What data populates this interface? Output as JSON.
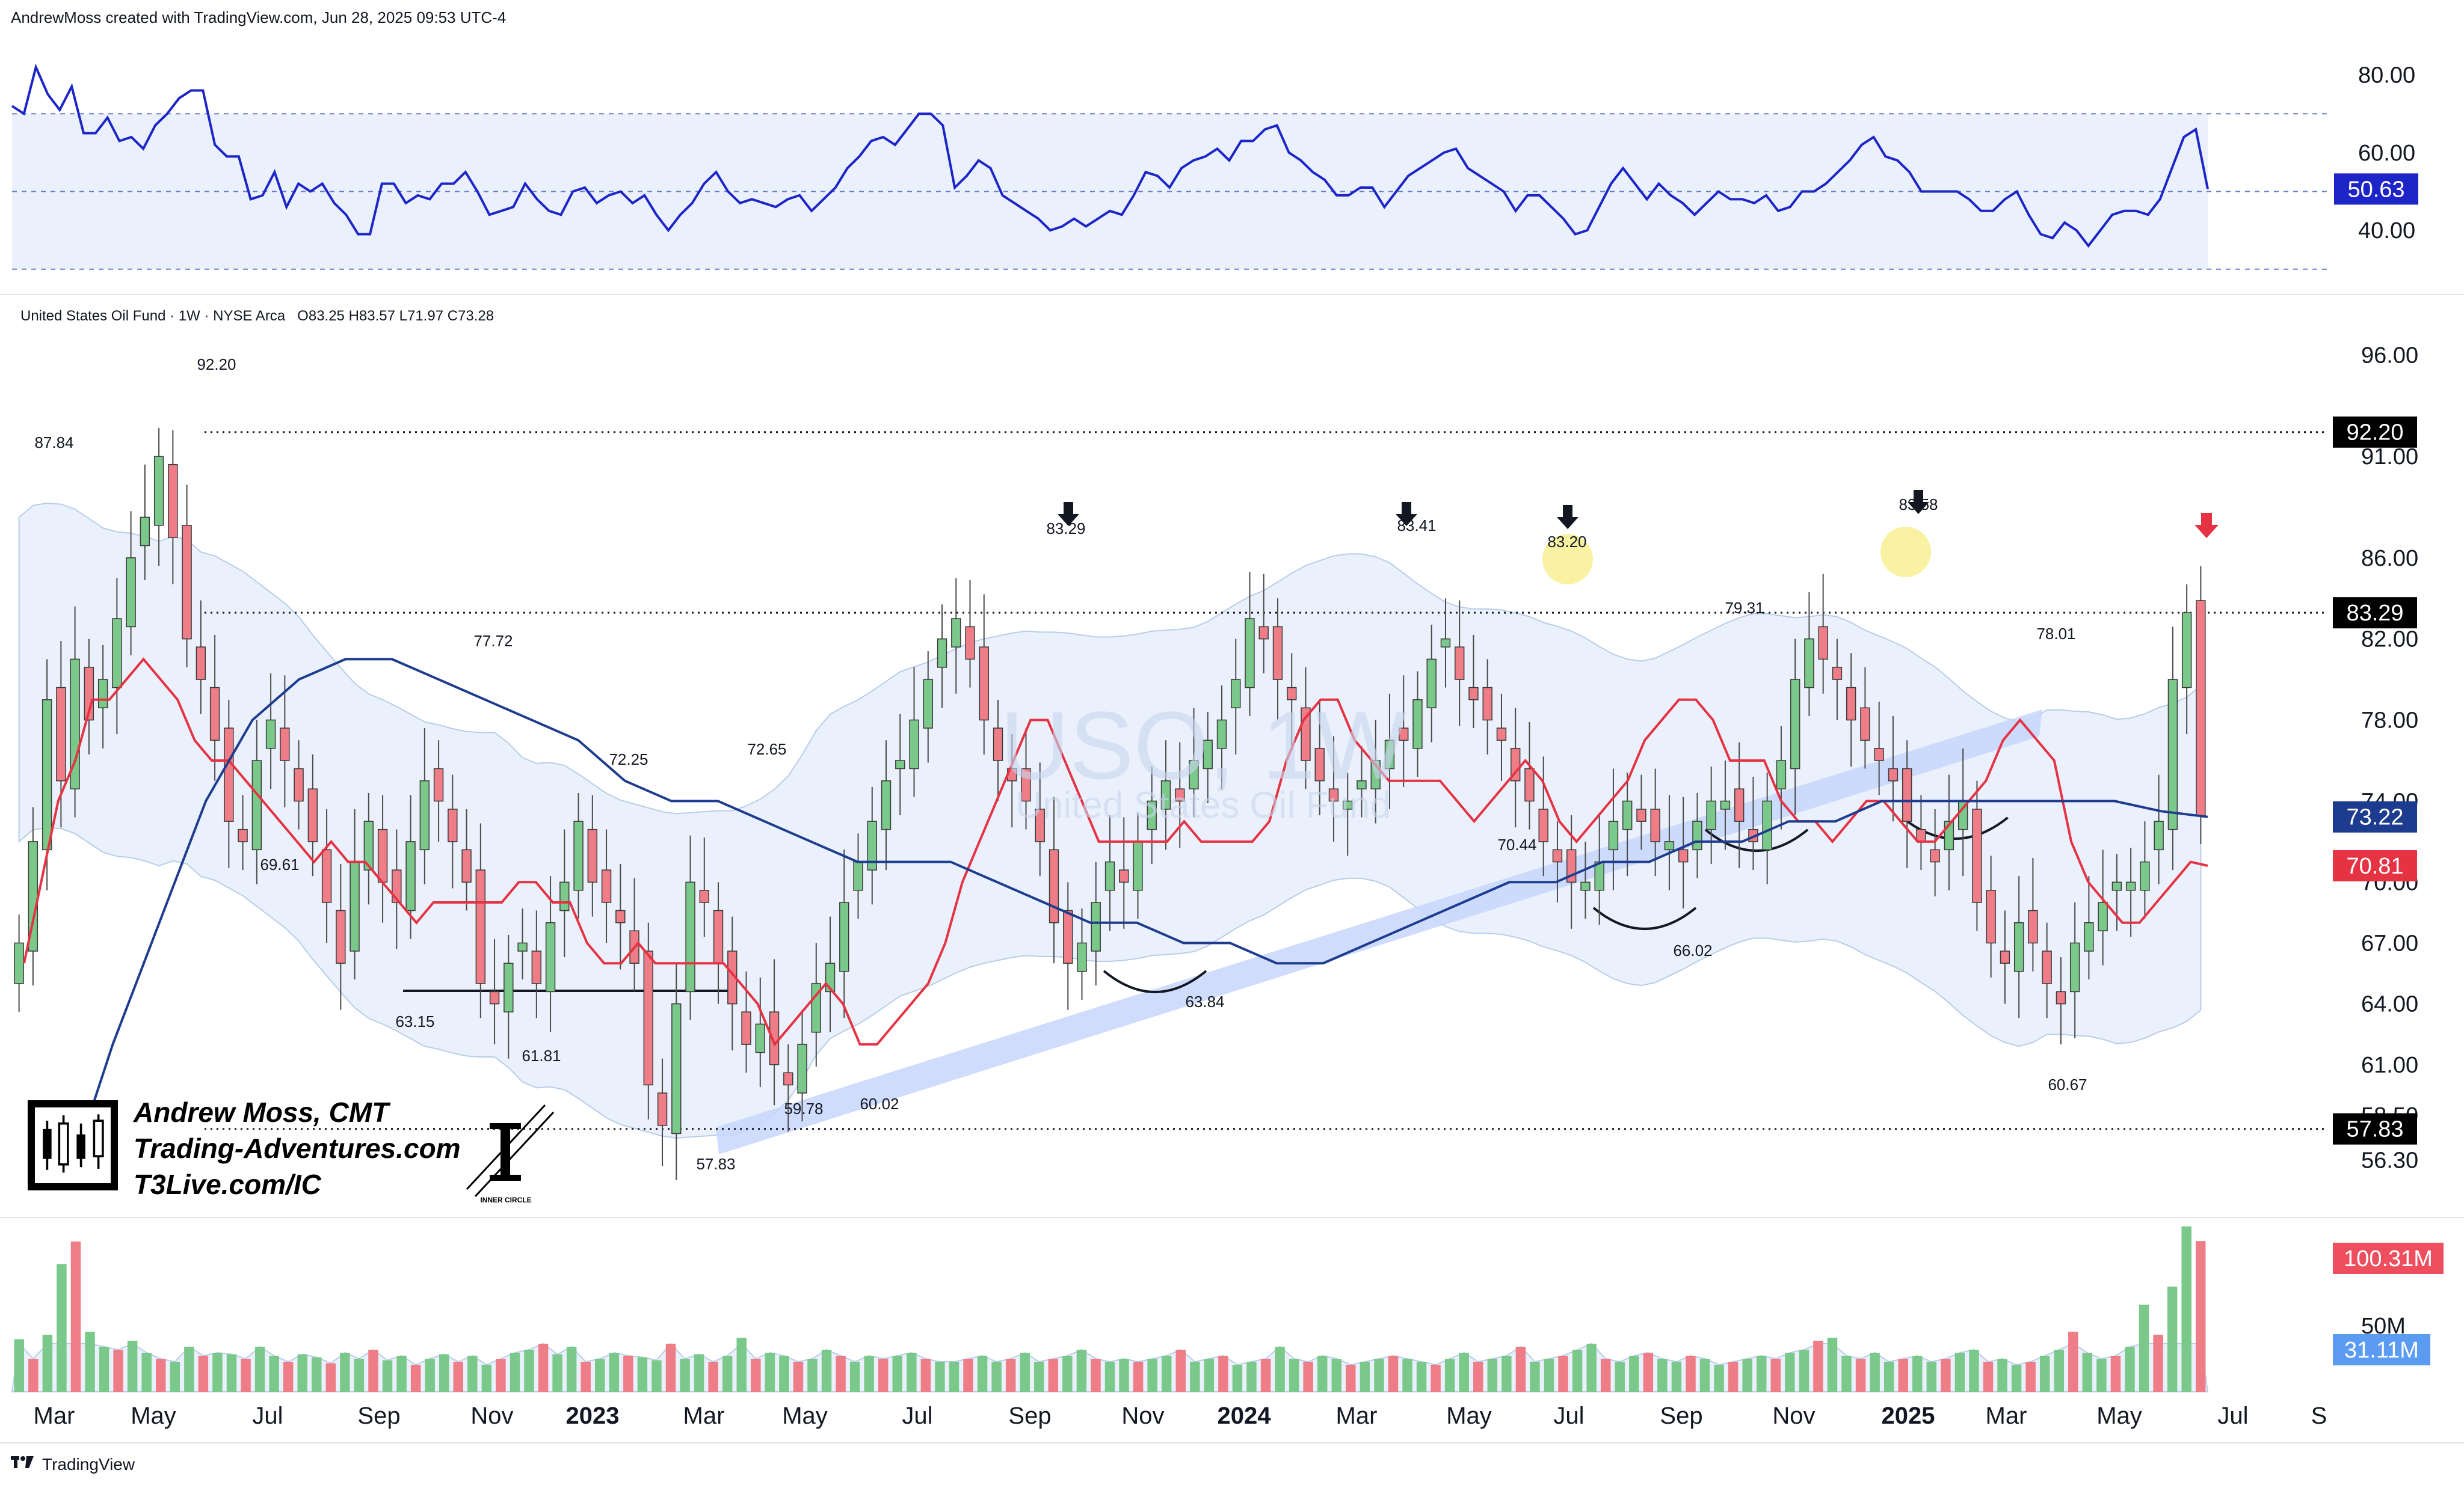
{
  "header": {
    "text": "AndrewMoss created with TradingView.com, Jun 28, 2025 09:53 UTC-4"
  },
  "footer": {
    "text": "TradingView"
  },
  "colors": {
    "up": "#7bc98a",
    "down": "#ef7d87",
    "ema_red": "#e53344",
    "ma_blue": "#1e3c8f",
    "rsi": "#1d24c8",
    "band_fill": "#eaf1fc",
    "channel": "#c7d6fb",
    "highlight": "#f7ed83"
  },
  "chart_data": [
    {
      "type": "line",
      "name": "rsi-panel",
      "ylim": [
        25,
        90
      ],
      "yticks": [
        "80.00",
        "60.00",
        "40.00"
      ],
      "guides": [
        30,
        50,
        70
      ],
      "current_label": "50.63",
      "values": [
        72,
        70,
        82,
        75,
        71,
        77,
        65,
        65,
        69,
        63,
        64,
        61,
        67,
        70,
        74,
        76,
        76,
        62,
        59,
        59,
        48,
        49,
        55,
        46,
        52,
        50,
        52,
        47,
        44,
        39,
        39,
        52,
        52,
        47,
        49,
        48,
        52,
        52,
        55,
        50,
        44,
        45,
        46,
        52,
        48,
        45,
        44,
        50,
        51,
        47,
        49,
        50,
        47,
        49,
        44,
        40,
        44,
        47,
        52,
        55,
        50,
        47,
        48,
        47,
        46,
        48,
        49,
        45,
        48,
        51,
        56,
        59,
        63,
        64,
        62,
        66,
        70,
        70,
        67,
        51,
        54,
        58,
        56,
        49,
        47,
        45,
        43,
        40,
        41,
        43,
        41,
        43,
        45,
        44,
        49,
        55,
        54,
        51,
        56,
        58,
        59,
        61,
        58,
        63,
        63,
        66,
        67,
        60,
        58,
        55,
        53,
        49,
        49,
        51,
        51,
        46,
        50,
        54,
        56,
        58,
        60,
        61,
        56,
        54,
        52,
        50,
        45,
        49,
        49,
        46,
        43,
        39,
        40,
        46,
        52,
        56,
        52,
        48,
        52,
        49,
        47,
        44,
        47,
        50,
        48,
        48,
        47,
        49,
        45,
        46,
        50,
        50,
        52,
        55,
        58,
        62,
        64,
        59,
        58,
        55,
        50,
        50,
        50,
        50,
        48,
        45,
        45,
        48,
        50,
        44,
        39,
        38,
        42,
        40,
        36,
        40,
        44,
        45,
        45,
        44,
        48,
        56,
        64,
        66,
        50.63
      ]
    },
    {
      "type": "candlestick",
      "name": "price-panel",
      "title": "United States Oil Fund · 1W · NYSE Arca",
      "ohlc_label": {
        "o": "O83.25",
        "h": "H83.57",
        "l": "L71.97",
        "c": "C73.28"
      },
      "watermark": [
        "USO, 1W",
        "United States Oil Fund"
      ],
      "ylim": [
        54.5,
        97.5
      ],
      "yticks": [
        "96.00",
        "91.00",
        "86.00",
        "82.00",
        "78.00",
        "74.00",
        "70.00",
        "67.00",
        "64.00",
        "61.00",
        "58.50",
        "56.30"
      ],
      "x_labels": [
        "Mar",
        "May",
        "Jul",
        "Sep",
        "Nov",
        "2023",
        "Mar",
        "May",
        "Jul",
        "Sep",
        "Nov",
        "2024",
        "Mar",
        "May",
        "Jul",
        "Sep",
        "Nov",
        "2025",
        "Mar",
        "May",
        "Jul",
        "S"
      ],
      "levels": [
        {
          "value": 92.2,
          "label": "92.20"
        },
        {
          "value": 83.29,
          "label": "83.29"
        },
        {
          "value": 57.83,
          "label": "57.83"
        }
      ],
      "right_badges": [
        {
          "value": 73.22,
          "label": "73.22",
          "color": "#1e3c8f"
        },
        {
          "value": 70.81,
          "label": "70.81",
          "color": "#e53344"
        }
      ],
      "annotations": [
        "87.84",
        "92.20",
        "69.61",
        "77.72",
        "63.15",
        "61.81",
        "72.25",
        "72.65",
        "57.83",
        "59.78",
        "60.02",
        "83.29",
        "63.84",
        "83.41",
        "83.20",
        "70.44",
        "79.31",
        "66.02",
        "83.58",
        "78.01",
        "60.67"
      ],
      "close": [
        67,
        72,
        79,
        75,
        81,
        78,
        80,
        83,
        86,
        88,
        91,
        87,
        82,
        80,
        77,
        73,
        72,
        76,
        78,
        76,
        74,
        72,
        69,
        66,
        71,
        73,
        70,
        69,
        72,
        75,
        74,
        72,
        70,
        65,
        64,
        66,
        67,
        65,
        68,
        70,
        73,
        70,
        69,
        68,
        66,
        60,
        58,
        64,
        70,
        69,
        66,
        64,
        62,
        63,
        61,
        60,
        62,
        65,
        66,
        69,
        71,
        73,
        75,
        76,
        78,
        80,
        82,
        83,
        81,
        78,
        76,
        75,
        74,
        72,
        68,
        66,
        67,
        69,
        71,
        70,
        72,
        74,
        75,
        74,
        76,
        77,
        78,
        80,
        83,
        82,
        80,
        79,
        76,
        75,
        74,
        74,
        75,
        76,
        77,
        77,
        79,
        81,
        82,
        80,
        79,
        78,
        77,
        75,
        74,
        72,
        71,
        70,
        70,
        71,
        73,
        74,
        73,
        72,
        72,
        71,
        73,
        74,
        74,
        73,
        72,
        74,
        76,
        80,
        82,
        81,
        80,
        78,
        77,
        76,
        75,
        73,
        72,
        71,
        73,
        74,
        69,
        67,
        66,
        68,
        67,
        65,
        64,
        67,
        68,
        69,
        70,
        70,
        71,
        73,
        80,
        83.29,
        73.28
      ],
      "ema_red": [
        66,
        70,
        74,
        76,
        79,
        79,
        80,
        81,
        80,
        79,
        77,
        76,
        76,
        75,
        74,
        73,
        72,
        71,
        72,
        71,
        71,
        70,
        69,
        68,
        69,
        69,
        69,
        69,
        69,
        70,
        70,
        69,
        69,
        67,
        66,
        66,
        67,
        66,
        66,
        66,
        66,
        66,
        65,
        64,
        62,
        63,
        64,
        65,
        64,
        62,
        62,
        63,
        64,
        65,
        67,
        70,
        72,
        74,
        76,
        78,
        78,
        76,
        74,
        72,
        72,
        72,
        72,
        72,
        73,
        72,
        72,
        72,
        72,
        73,
        76,
        78,
        79,
        79,
        77,
        76,
        75,
        75,
        75,
        75,
        74,
        73,
        74,
        75,
        76,
        75,
        73,
        72,
        73,
        74,
        75,
        77,
        78,
        79,
        79,
        78,
        76,
        76,
        76,
        74,
        73,
        73,
        72,
        73,
        74,
        74,
        73,
        72,
        72,
        73,
        74,
        75,
        77,
        78,
        77,
        76,
        72,
        70,
        69,
        68,
        68,
        69,
        70,
        71,
        70.81
      ],
      "ma_blue": [
        55,
        62,
        68,
        74,
        78,
        80,
        81,
        81,
        80,
        79,
        78,
        77,
        75,
        74,
        74,
        73,
        72,
        71,
        71,
        71,
        70,
        69,
        68,
        68,
        67,
        67,
        66,
        66,
        67,
        68,
        69,
        70,
        70,
        71,
        71,
        72,
        72,
        73,
        73,
        74,
        74,
        74,
        74,
        74,
        74,
        73.5,
        73.22
      ],
      "volume": {
        "label": "100.31M",
        "avg_label": "31.11M",
        "mid_label": "50M",
        "ylim": [
          0,
          110
        ],
        "values": [
          35,
          22,
          38,
          85,
          100,
          40,
          30,
          28,
          34,
          26,
          22,
          20,
          30,
          24,
          26,
          25,
          22,
          30,
          24,
          20,
          25,
          23,
          19,
          26,
          22,
          28,
          21,
          24,
          18,
          22,
          25,
          20,
          24,
          18,
          22,
          26,
          28,
          32,
          25,
          30,
          20,
          22,
          26,
          24,
          23,
          21,
          32,
          22,
          25,
          20,
          24,
          36,
          22,
          26,
          24,
          20,
          22,
          28,
          24,
          20,
          24,
          22,
          24,
          26,
          22,
          20,
          20,
          22,
          24,
          20,
          22,
          26,
          20,
          22,
          24,
          28,
          22,
          20,
          22,
          20,
          22,
          24,
          28,
          20,
          22,
          24,
          18,
          20,
          22,
          30,
          22,
          20,
          24,
          22,
          18,
          20,
          22,
          24,
          22,
          20,
          18,
          22,
          26,
          20,
          22,
          24,
          30,
          20,
          22,
          24,
          28,
          32,
          22,
          20,
          24,
          26,
          22,
          20,
          24,
          22,
          18,
          20,
          22,
          24,
          22,
          26,
          28,
          34,
          36,
          24,
          22,
          26,
          20,
          22,
          24,
          20,
          22,
          26,
          28,
          20,
          22,
          18,
          20,
          24,
          28,
          40,
          26,
          22,
          24,
          30,
          58,
          38,
          70,
          110,
          100.31
        ]
      }
    }
  ]
}
